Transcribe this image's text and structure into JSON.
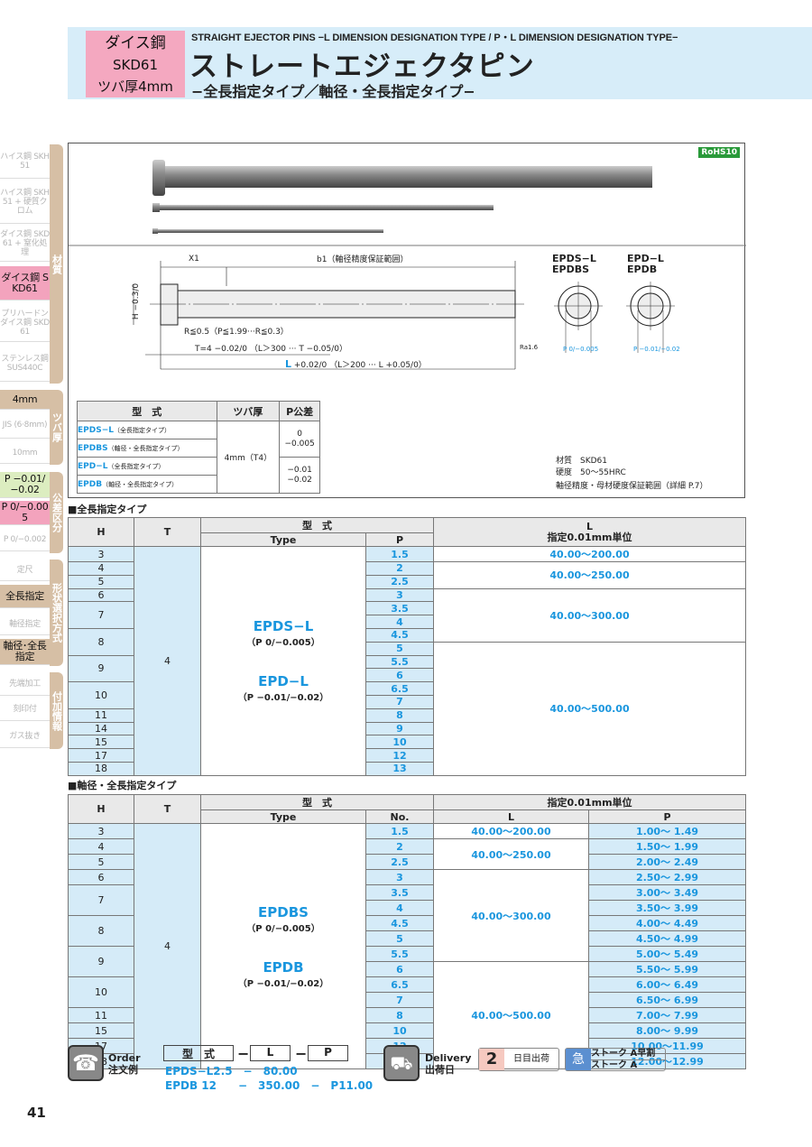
{
  "header": {
    "badge": [
      "ダイス鋼",
      "SKD61",
      "ツバ厚4mm"
    ],
    "title_en": "STRAIGHT EJECTOR PINS −L DIMENSION DESIGNATION TYPE / P・L DIMENSION DESIGNATION TYPE−",
    "title_jp": "ストレートエジェクタピン",
    "subtitle": "−全長指定タイプ／軸径・全長指定タイプ−"
  },
  "sidebar": {
    "items": [
      "ハイス鋼 SKH51",
      "ハイス鋼 SKH51 + 硬質クロム",
      "ダイス鋼 SKD61 + 窒化処理",
      "ダイス鋼 SKD61",
      "プリハードン ダイス鋼 SKD61",
      "ステンレス鋼 SUS440C",
      "4mm",
      "JIS (6·8mm)",
      "10mm",
      "P −0.01/−0.02",
      "P 0/−0.005",
      "P 0/−0.002",
      "定尺",
      "全長指定",
      "軸径指定",
      "軸径･全長指定",
      "先端加工",
      "刻印付",
      "ガス抜き"
    ],
    "tabs": [
      "材質",
      "ツバ厚",
      "公差区分",
      "形状選択方式",
      "付加情報"
    ]
  },
  "drawing": {
    "rohs": "RoHS10",
    "x1": "X1",
    "b1": "b1（軸径精度保証範囲）",
    "h": "H −0.3/0",
    "r": "R≦0.5（P≦1.99···R≦0.3）",
    "t": "T=4 −0.02/0 （L＞300 ··· T −0.05/0）",
    "l_letter": "L",
    "l": "+0.02/0 （L＞200 ··· L +0.05/0）",
    "ra": "Ra1.6",
    "sec1": [
      "EPDS−L",
      "EPDBS"
    ],
    "sec1_tol": "P 0/−0.005",
    "sec2": [
      "EPD−L",
      "EPDB"
    ],
    "sec2_tol": "P −0.01/−0.02",
    "material": "材質　SKD61",
    "hardness": "硬度　50〜55HRC",
    "note": "軸径精度・母材硬度保証範囲（詳細 P.7）"
  },
  "spec_table": {
    "headers": [
      "型　式",
      "ツバ厚",
      "P公差"
    ],
    "rows": [
      {
        "code": "EPDS−L",
        "desc": "（全長指定タイプ）"
      },
      {
        "code": "EPDBS",
        "desc": "（軸径・全長指定タイプ）"
      },
      {
        "code": "EPD−L",
        "desc": "（全長指定タイプ）"
      },
      {
        "code": "EPDB",
        "desc": "（軸径・全長指定タイプ）"
      }
    ],
    "thickness": "4mm（T4）",
    "tol1": [
      "0",
      "−0.005"
    ],
    "tol2": [
      "−0.01",
      "−0.02"
    ]
  },
  "table1": {
    "title": "■全長指定タイプ",
    "h": "H",
    "t": "T",
    "model": "型　式",
    "type": "Type",
    "p": "P",
    "l": "L",
    "l_unit": "指定0.01mm単位",
    "t_value": "4",
    "type1": "EPDS−L",
    "type1_tol": "（P 0/−0.005）",
    "type2": "EPD−L",
    "type2_tol": "（P −0.01/−0.02）",
    "rows": [
      [
        "3",
        "1.5"
      ],
      [
        "4",
        "2"
      ],
      [
        "5",
        "2.5"
      ],
      [
        "6",
        "3"
      ],
      [
        "7",
        "3.5"
      ],
      [
        "",
        "4"
      ],
      [
        "8",
        "4.5"
      ],
      [
        "",
        "5"
      ],
      [
        "9",
        "5.5"
      ],
      [
        "",
        "6"
      ],
      [
        "10",
        "6.5"
      ],
      [
        "",
        "7"
      ],
      [
        "11",
        "8"
      ],
      [
        "14",
        "9"
      ],
      [
        "15",
        "10"
      ],
      [
        "17",
        "12"
      ],
      [
        "18",
        "13"
      ]
    ],
    "l_groups": [
      {
        "value": "40.00〜200.00",
        "rows": 1
      },
      {
        "value": "40.00〜250.00",
        "rows": 2
      },
      {
        "value": "40.00〜300.00",
        "rows": 4
      },
      {
        "value": "40.00〜500.00",
        "rows": 10
      }
    ]
  },
  "table2": {
    "title": "■軸径・全長指定タイプ",
    "h": "H",
    "t": "T",
    "model": "型　式",
    "type": "Type",
    "no": "No.",
    "unit": "指定0.01mm単位",
    "l": "L",
    "p": "P",
    "t_value": "4",
    "type1": "EPDBS",
    "type1_tol": "（P 0/−0.005）",
    "type2": "EPDB",
    "type2_tol": "（P −0.01/−0.02）",
    "rows": [
      [
        "3",
        "1.5",
        "1.00〜 1.49"
      ],
      [
        "4",
        "2",
        "1.50〜 1.99"
      ],
      [
        "5",
        "2.5",
        "2.00〜 2.49"
      ],
      [
        "6",
        "3",
        "2.50〜 2.99"
      ],
      [
        "7",
        "3.5",
        "3.00〜 3.49"
      ],
      [
        "",
        "4",
        "3.50〜 3.99"
      ],
      [
        "8",
        "4.5",
        "4.00〜 4.49"
      ],
      [
        "",
        "5",
        "4.50〜 4.99"
      ],
      [
        "9",
        "5.5",
        "5.00〜 5.49"
      ],
      [
        "",
        "6",
        "5.50〜 5.99"
      ],
      [
        "10",
        "6.5",
        "6.00〜 6.49"
      ],
      [
        "",
        "7",
        "6.50〜 6.99"
      ],
      [
        "11",
        "8",
        "7.00〜 7.99"
      ],
      [
        "15",
        "10",
        "8.00〜 9.99"
      ],
      [
        "17",
        "12",
        "10.00〜11.99"
      ],
      [
        "18",
        "13",
        "12.00〜12.99"
      ]
    ],
    "l_groups": [
      {
        "value": "40.00〜200.00",
        "rows": 1
      },
      {
        "value": "40.00〜250.00",
        "rows": 2
      },
      {
        "value": "40.00〜300.00",
        "rows": 6
      },
      {
        "value": "40.00〜500.00",
        "rows": 7
      }
    ]
  },
  "order": {
    "label_en": "Order",
    "label_jp": "注文例",
    "col1": "型　式",
    "col2": "L",
    "col3": "P",
    "ex1": "EPDS−L2.5　−　80.00",
    "ex2": "EPDB 12　　−　350.00　−　P11.00"
  },
  "delivery": {
    "label_en": "Delivery",
    "label_jp": "出荷日",
    "days": "2",
    "days_label": "日目出荷",
    "stock1": "ストーク A早割",
    "stock2": "ストーク A"
  },
  "page_number": "41"
}
